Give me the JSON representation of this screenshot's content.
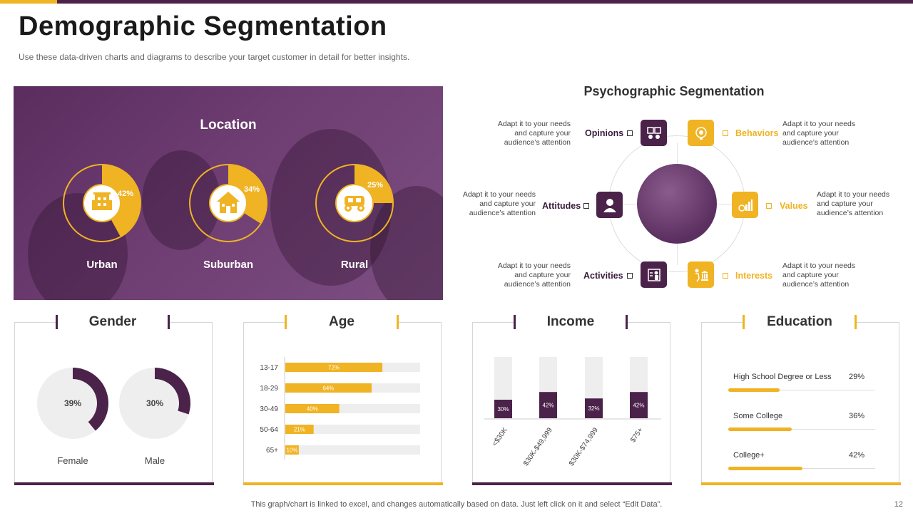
{
  "page": {
    "title": "Demographic Segmentation",
    "subtitle": "Use these data-driven  charts and diagrams to describe your target customer in detail for better insights.",
    "footer_note": "This graph/chart is linked to excel,  and changes automatically based on data. Just left click on it and select “Edit Data”.",
    "page_number": "12"
  },
  "colors": {
    "purple": "#4b2249",
    "gold": "#f0b323",
    "light_gray": "#eeeeee"
  },
  "location": {
    "title": "Location",
    "items": [
      {
        "label": "Urban",
        "value": 42,
        "value_label": "42%",
        "icon": "city-building-icon"
      },
      {
        "label": "Suburban",
        "value": 34,
        "value_label": "34%",
        "icon": "house-icon"
      },
      {
        "label": "Rural",
        "value": 25,
        "value_label": "25%",
        "icon": "tractor-icon"
      }
    ]
  },
  "psychographic": {
    "title": "Psychographic Segmentation",
    "items": [
      {
        "label": "Opinions",
        "desc": "Adapt it to your needs and capture your audience’s attention",
        "icon": "opinions-icon",
        "color": "purple"
      },
      {
        "label": "Behaviors",
        "desc": "Adapt it to your needs and capture your audience’s attention",
        "icon": "behaviors-head-icon",
        "color": "gold"
      },
      {
        "label": "Attitudes",
        "desc": "Adapt it to your needs and capture your audience’s attention",
        "icon": "person-icon",
        "color": "purple"
      },
      {
        "label": "Values",
        "desc": "Adapt it to your needs and capture your audience’s attention",
        "icon": "values-chart-icon",
        "color": "gold"
      },
      {
        "label": "Activities",
        "desc": "Adapt it to your needs and capture your audience’s attention",
        "icon": "activities-board-icon",
        "color": "purple"
      },
      {
        "label": "Interests",
        "desc": "Adapt it to your needs and capture your audience’s attention",
        "icon": "interests-icon",
        "color": "gold"
      }
    ]
  },
  "cards": {
    "gender": "Gender",
    "age": "Age",
    "income": "Income",
    "education": "Education"
  },
  "chart_data": [
    {
      "type": "pie",
      "name": "Gender",
      "slices": [
        {
          "label": "Female",
          "value": 39,
          "value_label": "39%"
        },
        {
          "label": "Male",
          "value": 30,
          "value_label": "30%"
        }
      ]
    },
    {
      "type": "bar",
      "name": "Age",
      "orientation": "horizontal",
      "categories": [
        "13-17",
        "18-29",
        "30-49",
        "50-64",
        "65+"
      ],
      "values": [
        72,
        64,
        40,
        21,
        10
      ],
      "value_labels": [
        "72%",
        "64%",
        "40%",
        "21%",
        "10%"
      ],
      "xlim": [
        0,
        100
      ]
    },
    {
      "type": "bar",
      "name": "Income",
      "categories": [
        "<$30K",
        "$30K-$49,999",
        "$30K-$74,999",
        "$75+"
      ],
      "values": [
        30,
        42,
        32,
        42
      ],
      "value_labels": [
        "30%",
        "42%",
        "32%",
        "42%"
      ],
      "ylim": [
        0,
        100
      ]
    },
    {
      "type": "bar",
      "name": "Education",
      "orientation": "horizontal",
      "categories": [
        "High School Degree or Less",
        "Some College",
        "College+"
      ],
      "values": [
        29,
        36,
        42
      ],
      "value_labels": [
        "29%",
        "36%",
        "42%"
      ],
      "xlim": [
        0,
        100
      ]
    }
  ]
}
